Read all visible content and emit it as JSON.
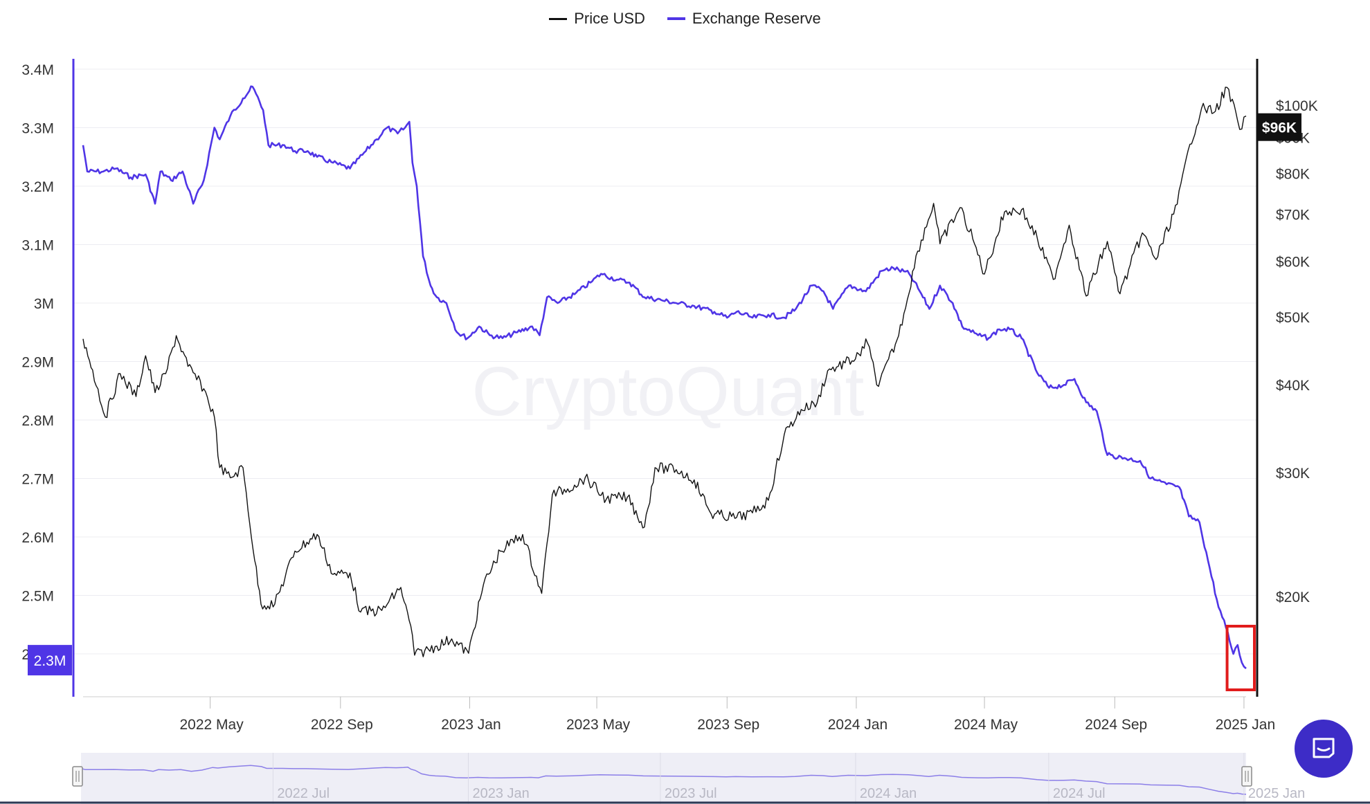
{
  "legend": [
    {
      "label": "Price USD",
      "color": "#111111"
    },
    {
      "label": "Exchange Reserve",
      "color": "#4f35e6"
    }
  ],
  "watermark": "CryptoQuant",
  "colors": {
    "reserve": "#4f35e6",
    "price": "#111111",
    "highlight": "#e11c1c",
    "navigator_fill": "#eeeef6",
    "grid": "#ececf2"
  },
  "current": {
    "reserve_label": "2.3M",
    "price_label": "$96K"
  },
  "navigator": {
    "labels": [
      "2022 Jul",
      "2023 Jan",
      "2023 Jul",
      "2024 Jan",
      "2024 Jul",
      "2025 Jan"
    ]
  },
  "chat_button": {
    "icon": "chat-bubble-icon",
    "color": "#3d2cc7"
  },
  "chart_data": {
    "type": "line",
    "x_labels": [
      "2022 May",
      "2022 Sep",
      "2023 Jan",
      "2023 May",
      "2023 Sep",
      "2024 Jan",
      "2024 May",
      "2024 Sep",
      "2025 Jan"
    ],
    "y_left_ticks": [
      "3.4M",
      "3.3M",
      "3.2M",
      "3.1M",
      "3M",
      "2.9M",
      "2.8M",
      "2.7M",
      "2.6M",
      "2.5M",
      "2.4M"
    ],
    "y_left_range": [
      2.33,
      3.4
    ],
    "y_right_ticks": [
      "$100K",
      "$90K",
      "$80K",
      "$70K",
      "$60K",
      "$50K",
      "$40K",
      "$30K",
      "$20K"
    ],
    "y_right_scale": "log",
    "series": [
      {
        "name": "Exchange Reserve",
        "axis": "left",
        "unit": "M",
        "points": [
          [
            "2022-01-01",
            3.27
          ],
          [
            "2022-01-05",
            3.225
          ],
          [
            "2022-01-20",
            3.225
          ],
          [
            "2022-02-01",
            3.23
          ],
          [
            "2022-02-15",
            3.215
          ],
          [
            "2022-03-01",
            3.22
          ],
          [
            "2022-03-10",
            3.17
          ],
          [
            "2022-03-15",
            3.225
          ],
          [
            "2022-03-25",
            3.21
          ],
          [
            "2022-04-05",
            3.225
          ],
          [
            "2022-04-15",
            3.17
          ],
          [
            "2022-04-25",
            3.21
          ],
          [
            "2022-05-05",
            3.3
          ],
          [
            "2022-05-10",
            3.28
          ],
          [
            "2022-05-20",
            3.32
          ],
          [
            "2022-06-01",
            3.35
          ],
          [
            "2022-06-10",
            3.37
          ],
          [
            "2022-06-20",
            3.33
          ],
          [
            "2022-06-25",
            3.27
          ],
          [
            "2022-07-10",
            3.27
          ],
          [
            "2022-07-20",
            3.26
          ],
          [
            "2022-08-01",
            3.26
          ],
          [
            "2022-08-10",
            3.25
          ],
          [
            "2022-08-25",
            3.24
          ],
          [
            "2022-09-10",
            3.23
          ],
          [
            "2022-09-25",
            3.26
          ],
          [
            "2022-10-05",
            3.28
          ],
          [
            "2022-10-15",
            3.3
          ],
          [
            "2022-10-25",
            3.29
          ],
          [
            "2022-11-01",
            3.3
          ],
          [
            "2022-11-05",
            3.31
          ],
          [
            "2022-11-08",
            3.24
          ],
          [
            "2022-11-12",
            3.2
          ],
          [
            "2022-11-18",
            3.08
          ],
          [
            "2022-11-25",
            3.03
          ],
          [
            "2022-12-01",
            3.01
          ],
          [
            "2022-12-10",
            3.0
          ],
          [
            "2022-12-20",
            2.95
          ],
          [
            "2022-12-30",
            2.94
          ],
          [
            "2023-01-10",
            2.96
          ],
          [
            "2023-01-20",
            2.945
          ],
          [
            "2023-02-01",
            2.94
          ],
          [
            "2023-02-15",
            2.95
          ],
          [
            "2023-03-01",
            2.96
          ],
          [
            "2023-03-08",
            2.945
          ],
          [
            "2023-03-15",
            3.01
          ],
          [
            "2023-03-25",
            3.0
          ],
          [
            "2023-04-10",
            3.015
          ],
          [
            "2023-04-25",
            3.035
          ],
          [
            "2023-05-05",
            3.05
          ],
          [
            "2023-05-20",
            3.04
          ],
          [
            "2023-06-01",
            3.035
          ],
          [
            "2023-06-15",
            3.01
          ],
          [
            "2023-07-01",
            3.005
          ],
          [
            "2023-07-15",
            3.0
          ],
          [
            "2023-08-01",
            2.995
          ],
          [
            "2023-08-20",
            2.985
          ],
          [
            "2023-09-01",
            2.975
          ],
          [
            "2023-09-10",
            2.985
          ],
          [
            "2023-09-25",
            2.975
          ],
          [
            "2023-10-10",
            2.98
          ],
          [
            "2023-10-25",
            2.975
          ],
          [
            "2023-11-05",
            2.99
          ],
          [
            "2023-11-20",
            3.03
          ],
          [
            "2023-12-01",
            3.02
          ],
          [
            "2023-12-10",
            2.99
          ],
          [
            "2023-12-25",
            3.03
          ],
          [
            "2024-01-10",
            3.02
          ],
          [
            "2024-01-25",
            3.055
          ],
          [
            "2024-02-05",
            3.06
          ],
          [
            "2024-02-20",
            3.05
          ],
          [
            "2024-03-01",
            3.02
          ],
          [
            "2024-03-10",
            2.99
          ],
          [
            "2024-03-20",
            3.03
          ],
          [
            "2024-04-01",
            3.0
          ],
          [
            "2024-04-10",
            2.96
          ],
          [
            "2024-04-25",
            2.945
          ],
          [
            "2024-05-05",
            2.94
          ],
          [
            "2024-05-15",
            2.955
          ],
          [
            "2024-05-25",
            2.955
          ],
          [
            "2024-06-05",
            2.94
          ],
          [
            "2024-06-20",
            2.88
          ],
          [
            "2024-07-01",
            2.855
          ],
          [
            "2024-07-15",
            2.86
          ],
          [
            "2024-07-25",
            2.87
          ],
          [
            "2024-08-05",
            2.83
          ],
          [
            "2024-08-15",
            2.815
          ],
          [
            "2024-08-25",
            2.74
          ],
          [
            "2024-09-10",
            2.735
          ],
          [
            "2024-09-25",
            2.73
          ],
          [
            "2024-10-05",
            2.7
          ],
          [
            "2024-10-20",
            2.69
          ],
          [
            "2024-11-01",
            2.685
          ],
          [
            "2024-11-10",
            2.635
          ],
          [
            "2024-11-20",
            2.625
          ],
          [
            "2024-11-28",
            2.56
          ],
          [
            "2024-12-08",
            2.48
          ],
          [
            "2024-12-15",
            2.445
          ],
          [
            "2024-12-22",
            2.4
          ],
          [
            "2024-12-26",
            2.415
          ],
          [
            "2024-12-30",
            2.385
          ],
          [
            "2025-01-03",
            2.375
          ]
        ]
      },
      {
        "name": "Price USD",
        "axis": "right",
        "unit": "USD",
        "points": [
          [
            "2022-01-01",
            46500
          ],
          [
            "2022-01-10",
            42000
          ],
          [
            "2022-01-22",
            36000
          ],
          [
            "2022-02-05",
            41500
          ],
          [
            "2022-02-20",
            38500
          ],
          [
            "2022-03-01",
            44000
          ],
          [
            "2022-03-10",
            39000
          ],
          [
            "2022-03-20",
            41500
          ],
          [
            "2022-03-30",
            47000
          ],
          [
            "2022-04-10",
            42500
          ],
          [
            "2022-04-25",
            39500
          ],
          [
            "2022-05-05",
            36000
          ],
          [
            "2022-05-10",
            30500
          ],
          [
            "2022-05-20",
            29500
          ],
          [
            "2022-06-01",
            30500
          ],
          [
            "2022-06-12",
            22500
          ],
          [
            "2022-06-18",
            19500
          ],
          [
            "2022-07-01",
            19500
          ],
          [
            "2022-07-20",
            23200
          ],
          [
            "2022-08-10",
            24500
          ],
          [
            "2022-08-25",
            21500
          ],
          [
            "2022-09-10",
            21600
          ],
          [
            "2022-09-20",
            19000
          ],
          [
            "2022-10-10",
            19100
          ],
          [
            "2022-10-28",
            20600
          ],
          [
            "2022-11-08",
            17600
          ],
          [
            "2022-11-10",
            16500
          ],
          [
            "2022-12-01",
            17000
          ],
          [
            "2022-12-15",
            17400
          ],
          [
            "2022-12-31",
            16600
          ],
          [
            "2023-01-14",
            20800
          ],
          [
            "2023-01-30",
            23200
          ],
          [
            "2023-02-20",
            24500
          ],
          [
            "2023-03-10",
            20200
          ],
          [
            "2023-03-20",
            27900
          ],
          [
            "2023-04-10",
            28800
          ],
          [
            "2023-04-20",
            29500
          ],
          [
            "2023-05-10",
            27500
          ],
          [
            "2023-05-30",
            27700
          ],
          [
            "2023-06-15",
            25100
          ],
          [
            "2023-06-25",
            30500
          ],
          [
            "2023-07-15",
            30300
          ],
          [
            "2023-08-01",
            29300
          ],
          [
            "2023-08-17",
            26200
          ],
          [
            "2023-09-10",
            25900
          ],
          [
            "2023-09-25",
            26300
          ],
          [
            "2023-10-10",
            27400
          ],
          [
            "2023-10-25",
            34000
          ],
          [
            "2023-11-10",
            36900
          ],
          [
            "2023-11-25",
            37700
          ],
          [
            "2023-12-05",
            41900
          ],
          [
            "2023-12-15",
            42500
          ],
          [
            "2024-01-05",
            44000
          ],
          [
            "2024-01-10",
            46500
          ],
          [
            "2024-01-22",
            39800
          ],
          [
            "2024-02-10",
            47000
          ],
          [
            "2024-02-28",
            62000
          ],
          [
            "2024-03-14",
            72500
          ],
          [
            "2024-03-20",
            63500
          ],
          [
            "2024-04-08",
            71500
          ],
          [
            "2024-04-20",
            64500
          ],
          [
            "2024-05-01",
            57500
          ],
          [
            "2024-05-20",
            70500
          ],
          [
            "2024-06-05",
            71000
          ],
          [
            "2024-06-20",
            64500
          ],
          [
            "2024-07-05",
            56500
          ],
          [
            "2024-07-20",
            67500
          ],
          [
            "2024-08-05",
            53500
          ],
          [
            "2024-08-25",
            64000
          ],
          [
            "2024-09-06",
            53900
          ],
          [
            "2024-09-27",
            65800
          ],
          [
            "2024-10-10",
            60300
          ],
          [
            "2024-10-30",
            72300
          ],
          [
            "2024-11-11",
            88000
          ],
          [
            "2024-11-22",
            99000
          ],
          [
            "2024-12-05",
            98000
          ],
          [
            "2024-12-16",
            106000
          ],
          [
            "2024-12-26",
            95000
          ],
          [
            "2024-12-30",
            92500
          ],
          [
            "2025-01-03",
            96500
          ]
        ]
      }
    ],
    "annotations": [
      {
        "type": "highlight-box",
        "x_range": [
          "2024-12-20",
          "2025-01-06"
        ],
        "color": "#e11c1c"
      }
    ]
  }
}
